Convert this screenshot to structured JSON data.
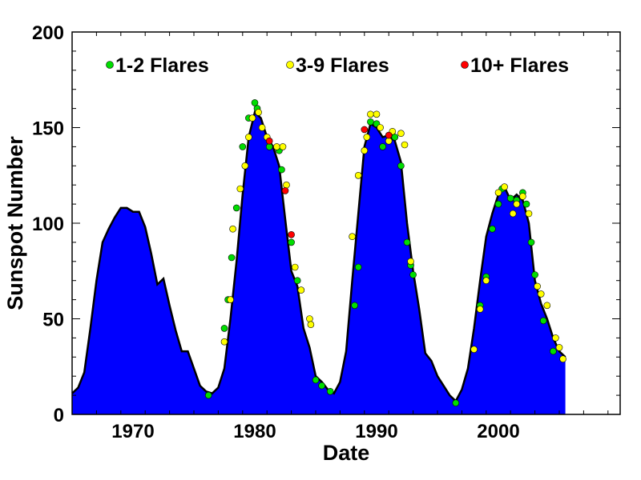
{
  "chart_data": {
    "type": "area",
    "title": "",
    "xlabel": "Date",
    "ylabel": "Sunspot Number",
    "xlim": [
      1965,
      2010
    ],
    "ylim": [
      0,
      200
    ],
    "x_ticks": [
      1970,
      1980,
      1990,
      2000
    ],
    "y_ticks": [
      0,
      50,
      100,
      150,
      200
    ],
    "grid": false,
    "legend_position": "top",
    "colors": {
      "area": "#0000ff",
      "outline": "#000000",
      "one_two": "#00dd00",
      "three_nine": "#ffff00",
      "ten_plus": "#ff0000"
    },
    "legend": [
      {
        "label": "1-2 Flares",
        "key": "one_two"
      },
      {
        "label": "3-9 Flares",
        "key": "three_nine"
      },
      {
        "label": "10+ Flares",
        "key": "ten_plus"
      }
    ],
    "series": [
      {
        "name": "Sunspot Number",
        "x": [
          1965.0,
          1965.5,
          1966.0,
          1966.5,
          1967.0,
          1967.5,
          1968.0,
          1968.5,
          1969.0,
          1969.5,
          1970.0,
          1970.5,
          1971.0,
          1971.5,
          1972.0,
          1972.5,
          1973.0,
          1973.5,
          1974.0,
          1974.5,
          1975.0,
          1975.5,
          1976.0,
          1976.5,
          1977.0,
          1977.5,
          1978.0,
          1978.5,
          1979.0,
          1979.5,
          1980.0,
          1980.5,
          1981.0,
          1981.5,
          1982.0,
          1982.5,
          1983.0,
          1983.5,
          1984.0,
          1984.5,
          1985.0,
          1985.5,
          1986.0,
          1986.5,
          1987.0,
          1987.5,
          1988.0,
          1988.5,
          1989.0,
          1989.5,
          1990.0,
          1990.5,
          1991.0,
          1991.5,
          1992.0,
          1992.5,
          1993.0,
          1993.5,
          1994.0,
          1994.5,
          1995.0,
          1995.5,
          1996.0,
          1996.5,
          1997.0,
          1997.5,
          1998.0,
          1998.5,
          1999.0,
          1999.5,
          2000.0,
          2000.5,
          2001.0,
          2001.5,
          2002.0,
          2002.5,
          2003.0,
          2003.5,
          2004.0,
          2004.5,
          2005.0,
          2005.5
        ],
        "y": [
          11,
          14,
          22,
          45,
          70,
          90,
          97,
          103,
          108,
          108,
          106,
          106,
          98,
          84,
          68,
          71,
          57,
          44,
          33,
          33,
          24,
          15,
          12,
          11,
          14,
          24,
          50,
          80,
          115,
          145,
          158,
          155,
          145,
          140,
          130,
          102,
          75,
          67,
          45,
          35,
          20,
          17,
          13,
          11,
          17,
          33,
          70,
          105,
          140,
          152,
          150,
          145,
          146,
          143,
          132,
          100,
          75,
          55,
          32,
          28,
          20,
          15,
          10,
          7,
          13,
          24,
          45,
          70,
          93,
          105,
          115,
          119,
          112,
          115,
          112,
          100,
          70,
          58,
          50,
          40,
          33,
          30
        ]
      }
    ],
    "flares": {
      "one_two": [
        [
          1976.2,
          10
        ],
        [
          1977.5,
          45
        ],
        [
          1977.8,
          60
        ],
        [
          1978.1,
          82
        ],
        [
          1978.5,
          108
        ],
        [
          1979.0,
          140
        ],
        [
          1979.5,
          155
        ],
        [
          1980.0,
          163
        ],
        [
          1980.2,
          160
        ],
        [
          1981.2,
          140
        ],
        [
          1982.0,
          138
        ],
        [
          1982.2,
          128
        ],
        [
          1983.0,
          90
        ],
        [
          1983.5,
          70
        ],
        [
          1985.0,
          18
        ],
        [
          1985.5,
          15
        ],
        [
          1986.2,
          12
        ],
        [
          1988.2,
          57
        ],
        [
          1988.5,
          77
        ],
        [
          1989.5,
          153
        ],
        [
          1990.0,
          152
        ],
        [
          1990.5,
          140
        ],
        [
          1991.5,
          145
        ],
        [
          1992.0,
          130
        ],
        [
          1992.5,
          90
        ],
        [
          1992.8,
          78
        ],
        [
          1993.0,
          73
        ],
        [
          1996.5,
          6
        ],
        [
          1998.5,
          57
        ],
        [
          1999.0,
          72
        ],
        [
          1999.5,
          97
        ],
        [
          2000.0,
          110
        ],
        [
          2000.3,
          118
        ],
        [
          2001.0,
          113
        ],
        [
          2001.5,
          112
        ],
        [
          2002.0,
          116
        ],
        [
          2002.3,
          110
        ],
        [
          2002.7,
          90
        ],
        [
          2003.0,
          73
        ],
        [
          2003.7,
          49
        ],
        [
          2004.5,
          33
        ]
      ],
      "three_nine": [
        [
          1977.5,
          38
        ],
        [
          1978.0,
          60
        ],
        [
          1978.2,
          97
        ],
        [
          1978.8,
          118
        ],
        [
          1979.2,
          130
        ],
        [
          1979.5,
          145
        ],
        [
          1979.8,
          155
        ],
        [
          1980.3,
          158
        ],
        [
          1980.6,
          150
        ],
        [
          1981.0,
          145
        ],
        [
          1981.8,
          140
        ],
        [
          1982.3,
          140
        ],
        [
          1982.6,
          120
        ],
        [
          1983.3,
          77
        ],
        [
          1983.8,
          65
        ],
        [
          1984.5,
          50
        ],
        [
          1984.6,
          47
        ],
        [
          1988.0,
          93
        ],
        [
          1988.5,
          125
        ],
        [
          1989.0,
          138
        ],
        [
          1989.2,
          145
        ],
        [
          1989.5,
          157
        ],
        [
          1990.0,
          157
        ],
        [
          1990.3,
          150
        ],
        [
          1991.0,
          143
        ],
        [
          1991.3,
          148
        ],
        [
          1992.0,
          147
        ],
        [
          1992.3,
          141
        ],
        [
          1992.8,
          80
        ],
        [
          1998.0,
          34
        ],
        [
          1998.5,
          55
        ],
        [
          1999.0,
          70
        ],
        [
          2000.0,
          116
        ],
        [
          2000.5,
          119
        ],
        [
          2001.2,
          105
        ],
        [
          2001.5,
          110
        ],
        [
          2002.0,
          114
        ],
        [
          2002.5,
          105
        ],
        [
          2003.2,
          67
        ],
        [
          2003.5,
          63
        ],
        [
          2004.0,
          57
        ],
        [
          2004.7,
          40
        ],
        [
          2005.0,
          35
        ],
        [
          2005.3,
          29
        ]
      ],
      "ten_plus": [
        [
          1981.2,
          143
        ],
        [
          1982.5,
          117
        ],
        [
          1983.0,
          94
        ],
        [
          1989.0,
          149
        ],
        [
          1991.0,
          146
        ]
      ]
    }
  }
}
